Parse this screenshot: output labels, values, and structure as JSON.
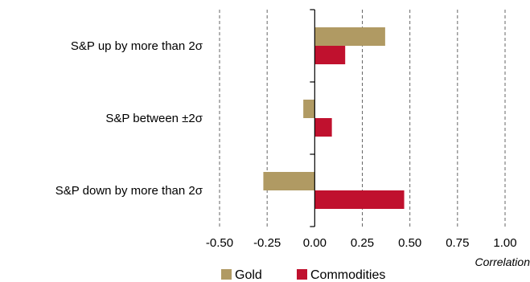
{
  "chart_data": {
    "type": "bar",
    "orientation": "horizontal",
    "categories": [
      "S&P up by more than 2σ",
      "S&P between ±2σ",
      "S&P down by more than 2σ"
    ],
    "series": [
      {
        "name": "Gold",
        "color": "#B09A63",
        "values": [
          0.37,
          -0.06,
          -0.27
        ]
      },
      {
        "name": "Commodities",
        "color": "#C0112E",
        "values": [
          0.16,
          0.09,
          0.47
        ]
      }
    ],
    "xlabel": "Correlation",
    "xlim": [
      -0.5,
      1.0
    ],
    "xticks": [
      -0.5,
      -0.25,
      0.0,
      0.25,
      0.5,
      0.75,
      1.0
    ],
    "xtick_labels": [
      "-0.50",
      "-0.25",
      "0.00",
      "0.25",
      "0.50",
      "0.75",
      "1.00"
    ],
    "grid": "vertical dashed",
    "legend_position": "bottom"
  }
}
